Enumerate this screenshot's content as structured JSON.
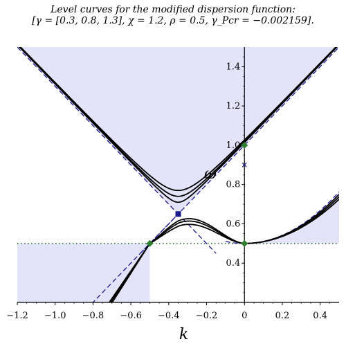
{
  "title_line1": "Level curves for the modified dispersion function:",
  "title_line2": "[γ = [0.3, 0.8, 1.3], χ = 1.2, ρ = 0.5, γ_Pcr = −0.002159].",
  "chart_data": {
    "type": "line",
    "title": "Level curves for the modified dispersion function:",
    "subtitle": "[γ = [0.3, 0.8, 1.3], χ = 1.2, ρ = 0.5, γ_Pcr = −0.002159].",
    "xlabel": "k",
    "ylabel": "ω",
    "xlim": [
      -1.2,
      0.5
    ],
    "ylim": [
      0.2,
      1.5
    ],
    "x_ticks": [
      "−1.2",
      "−1.0",
      "−0.8",
      "−0.6",
      "−0.4",
      "−0.2",
      "0",
      "0.2",
      "0.4"
    ],
    "y_ticks": [
      "0.4",
      "0.6",
      "0.8",
      "1.0",
      "1.2",
      "1.4"
    ],
    "params": {
      "gamma": [
        0.3,
        0.8,
        1.3
      ],
      "chi": 1.2,
      "rho": 0.5,
      "gamma_Pcr": -0.002159
    },
    "asymptote_line": {
      "k_at_omega_zero": -1.0,
      "slope": 1.0
    },
    "asymptote_hyperbola": {
      "k0": -0.35,
      "omega0": 0.65,
      "a": 0.35
    },
    "horizontal_level": 0.5,
    "series": [
      {
        "upper_min": [
          -0.35,
          0.77
        ],
        "lower_max": [
          -0.34,
          0.61
        ]
      },
      {
        "upper_min": [
          -0.35,
          0.74
        ],
        "lower_max": [
          -0.345,
          0.63
        ]
      },
      {
        "upper_min": [
          -0.35,
          0.71
        ],
        "lower_max": [
          -0.35,
          0.645
        ]
      }
    ],
    "markers": [
      {
        "shape": "diamond",
        "color": "#2e7d2e",
        "x": -0.5,
        "y": 0.5
      },
      {
        "shape": "diamond",
        "color": "#2e7d2e",
        "x": 0.0,
        "y": 0.5
      },
      {
        "shape": "diamond",
        "color": "#2e7d2e",
        "x": 0.0,
        "y": 1.0
      },
      {
        "shape": "square",
        "color": "#1a1a8c",
        "x": -0.35,
        "y": 0.65
      },
      {
        "shape": "cross",
        "color": "#1a1a8c",
        "x": 0.0,
        "y": 0.9
      }
    ],
    "fill_color": "#e3e3fa",
    "curve_color": "#000000",
    "dash_color": "#1a1a8c",
    "dotted_color": "#2e6e2e",
    "grid": false
  }
}
